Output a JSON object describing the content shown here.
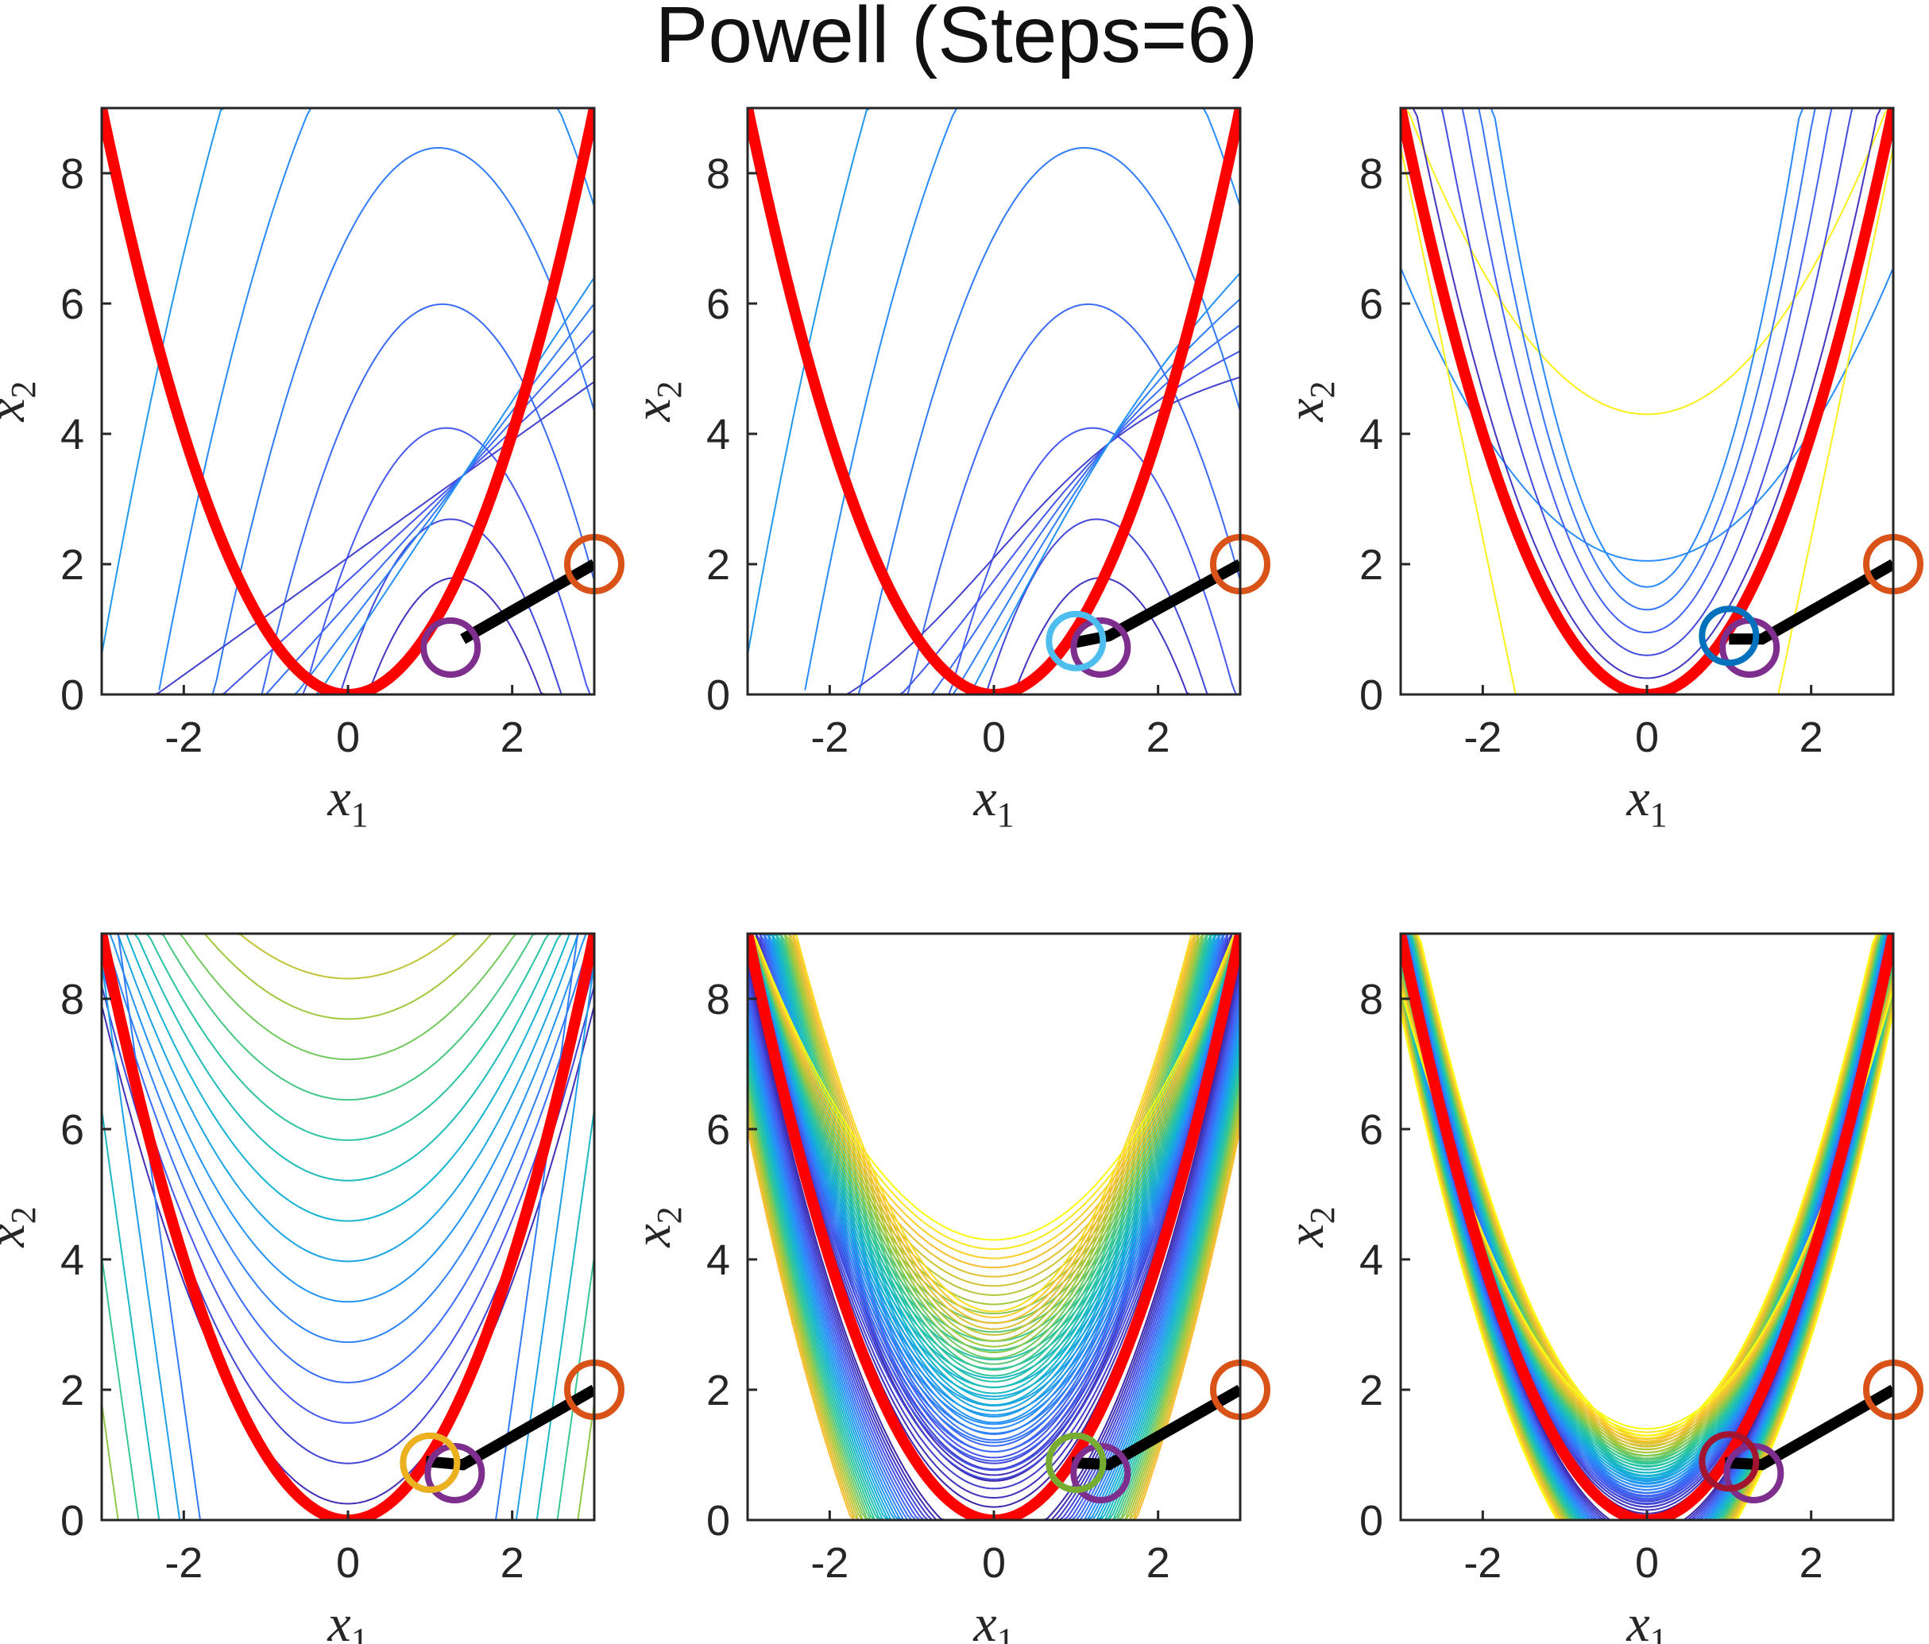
{
  "figure": {
    "title": "Powell (Steps=6)"
  },
  "colors": {
    "constraint": "#ff0000",
    "path": "#000000",
    "axes": "#262626",
    "start_marker": "#d95319"
  },
  "chart_data": [
    {
      "type": "contour",
      "panel": 1,
      "xlabel": "x_1",
      "ylabel": "x_2",
      "xlim": [
        -3,
        3
      ],
      "ylim": [
        0,
        9
      ],
      "xticks": [
        "-2",
        "0",
        "2"
      ],
      "yticks": [
        "0",
        "2",
        "4",
        "6",
        "8"
      ],
      "constraint_curve": "x2 = x1^2",
      "path": {
        "x": [
          3,
          1.4
        ],
        "y": [
          2,
          0.85
        ]
      },
      "markers": [
        {
          "x": 3,
          "y": 2,
          "color": "#d95319"
        },
        {
          "x": 1.25,
          "y": 0.72,
          "color": "#7e2f8e"
        }
      ]
    },
    {
      "type": "contour",
      "panel": 2,
      "xlabel": "x_1",
      "ylabel": "x_2",
      "xlim": [
        -3,
        3
      ],
      "ylim": [
        0,
        9
      ],
      "xticks": [
        "-2",
        "0",
        "2"
      ],
      "yticks": [
        "0",
        "2",
        "4",
        "6",
        "8"
      ],
      "constraint_curve": "x2 = x1^2",
      "path": {
        "x": [
          3,
          1.4,
          1.0
        ],
        "y": [
          2,
          0.9,
          0.8
        ]
      },
      "markers": [
        {
          "x": 3,
          "y": 2,
          "color": "#d95319"
        },
        {
          "x": 1.3,
          "y": 0.72,
          "color": "#7e2f8e"
        },
        {
          "x": 1.0,
          "y": 0.82,
          "color": "#4dbeee"
        }
      ]
    },
    {
      "type": "contour",
      "panel": 3,
      "xlabel": "x_1",
      "ylabel": "x_2",
      "xlim": [
        -3,
        3
      ],
      "ylim": [
        0,
        9
      ],
      "xticks": [
        "-2",
        "0",
        "2"
      ],
      "yticks": [
        "0",
        "2",
        "4",
        "6",
        "8"
      ],
      "constraint_curve": "x2 = x1^2",
      "path": {
        "x": [
          3,
          1.4,
          1.0
        ],
        "y": [
          2,
          0.85,
          0.85
        ]
      },
      "markers": [
        {
          "x": 3,
          "y": 2,
          "color": "#d95319"
        },
        {
          "x": 1.25,
          "y": 0.72,
          "color": "#7e2f8e"
        },
        {
          "x": 1.0,
          "y": 0.9,
          "color": "#0072bd"
        }
      ]
    },
    {
      "type": "contour",
      "panel": 4,
      "xlabel": "x_1",
      "ylabel": "x_2",
      "xlim": [
        -3,
        3
      ],
      "ylim": [
        0,
        9
      ],
      "xticks": [
        "-2",
        "0",
        "2"
      ],
      "yticks": [
        "0",
        "2",
        "4",
        "6",
        "8"
      ],
      "constraint_curve": "x2 = x1^2",
      "path": {
        "x": [
          3,
          1.4,
          0.95
        ],
        "y": [
          2,
          0.85,
          0.9
        ]
      },
      "markers": [
        {
          "x": 3,
          "y": 2,
          "color": "#d95319"
        },
        {
          "x": 1.3,
          "y": 0.72,
          "color": "#7e2f8e"
        },
        {
          "x": 1.0,
          "y": 0.88,
          "color": "#4dbeee"
        },
        {
          "x": 1.0,
          "y": 0.88,
          "color": "#edb120"
        }
      ]
    },
    {
      "type": "contour",
      "panel": 5,
      "xlabel": "x_1",
      "ylabel": "x_2",
      "xlim": [
        -3,
        3
      ],
      "ylim": [
        0,
        9
      ],
      "xticks": [
        "-2",
        "0",
        "2"
      ],
      "yticks": [
        "0",
        "2",
        "4",
        "6",
        "8"
      ],
      "constraint_curve": "x2 = x1^2",
      "path": {
        "x": [
          3,
          1.4,
          0.95
        ],
        "y": [
          2,
          0.85,
          0.88
        ]
      },
      "markers": [
        {
          "x": 3,
          "y": 2,
          "color": "#d95319"
        },
        {
          "x": 1.3,
          "y": 0.72,
          "color": "#7e2f8e"
        },
        {
          "x": 1.0,
          "y": 0.88,
          "color": "#4dbeee"
        },
        {
          "x": 1.0,
          "y": 0.88,
          "color": "#77ac30"
        }
      ]
    },
    {
      "type": "contour",
      "panel": 6,
      "xlabel": "x_1",
      "ylabel": "x_2",
      "xlim": [
        -3,
        3
      ],
      "ylim": [
        0,
        9
      ],
      "xticks": [
        "-2",
        "0",
        "2"
      ],
      "yticks": [
        "0",
        "2",
        "4",
        "6",
        "8"
      ],
      "constraint_curve": "x2 = x1^2",
      "path": {
        "x": [
          3,
          1.4,
          0.95
        ],
        "y": [
          2,
          0.85,
          0.88
        ]
      },
      "markers": [
        {
          "x": 3,
          "y": 2,
          "color": "#d95319"
        },
        {
          "x": 1.3,
          "y": 0.72,
          "color": "#7e2f8e"
        },
        {
          "x": 1.0,
          "y": 0.9,
          "color": "#a2142f"
        }
      ]
    }
  ]
}
